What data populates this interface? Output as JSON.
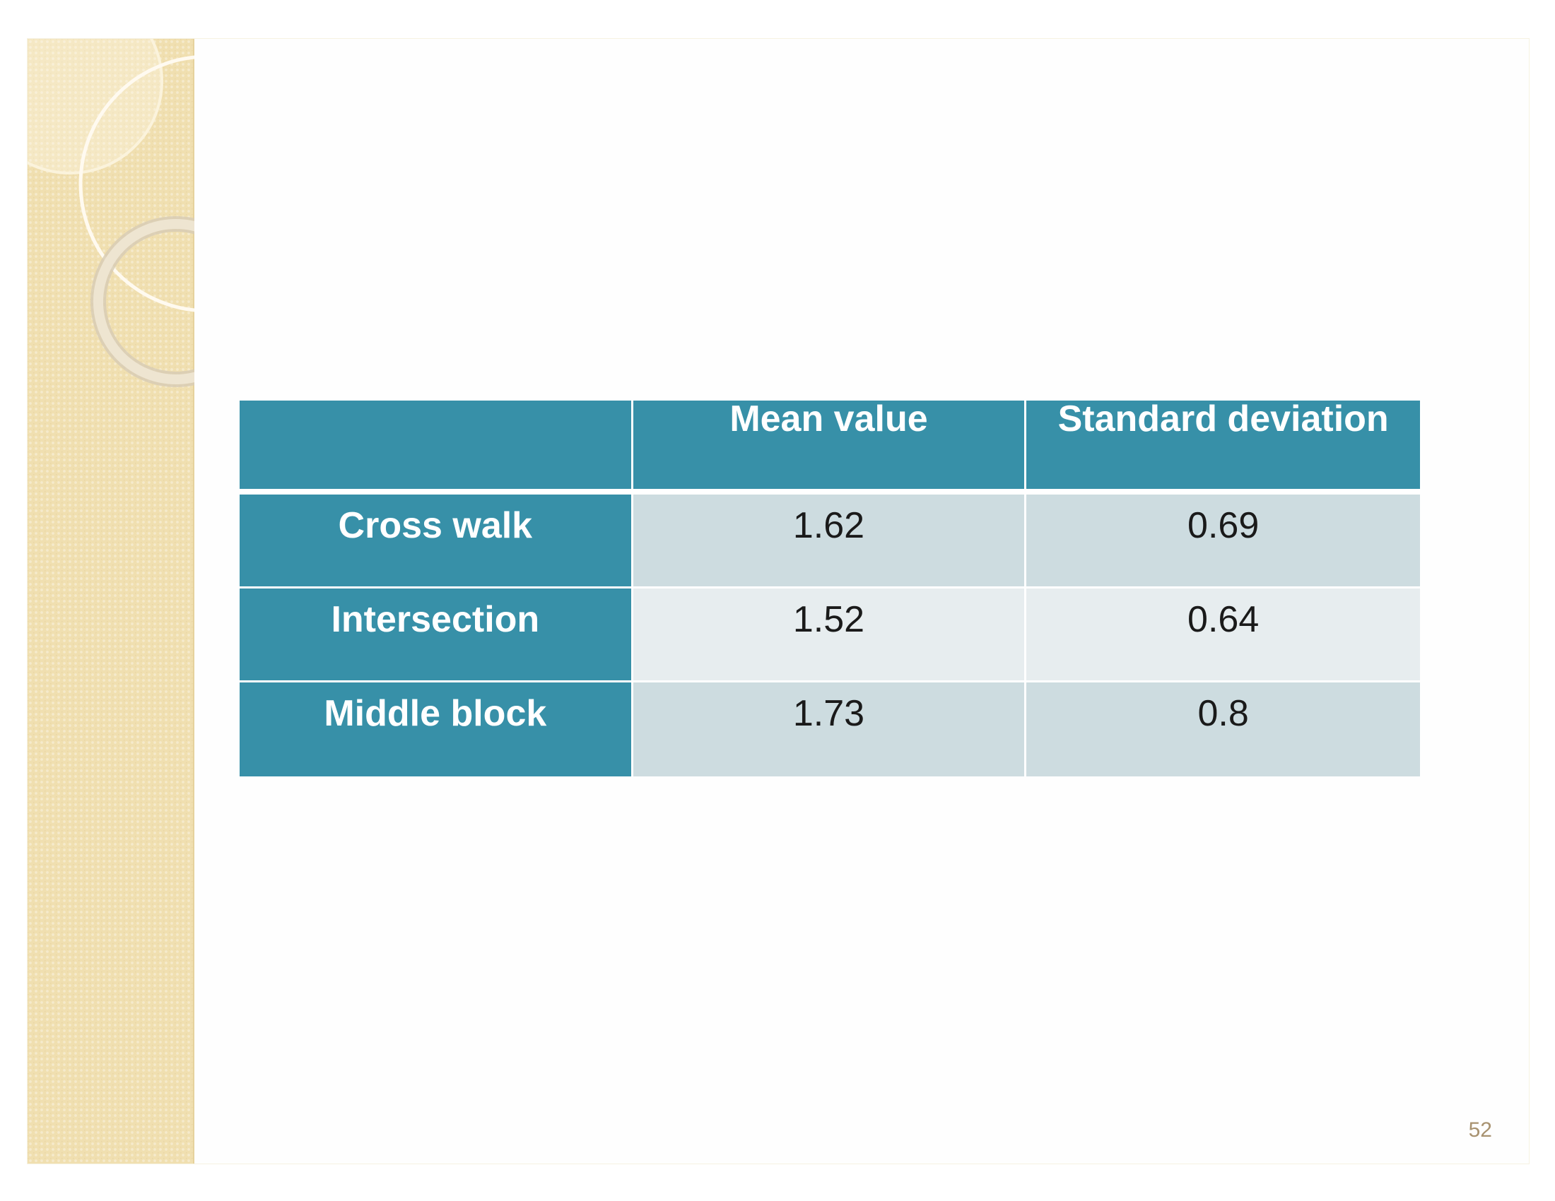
{
  "slide": {
    "number": "52"
  },
  "table": {
    "headers": [
      "",
      "Mean value",
      "Standard deviation"
    ],
    "rows": [
      {
        "label": "Cross walk",
        "mean": "1.62",
        "std": "0.69"
      },
      {
        "label": "Intersection",
        "mean": "1.52",
        "std": "0.64"
      },
      {
        "label": "Middle block",
        "mean": "1.73",
        "std": "0.8"
      }
    ]
  },
  "colors": {
    "header_bg": "#3790a8",
    "cell_odd": "#cddce0",
    "cell_even": "#e7edef",
    "side_panel": "#f0dfb0"
  }
}
